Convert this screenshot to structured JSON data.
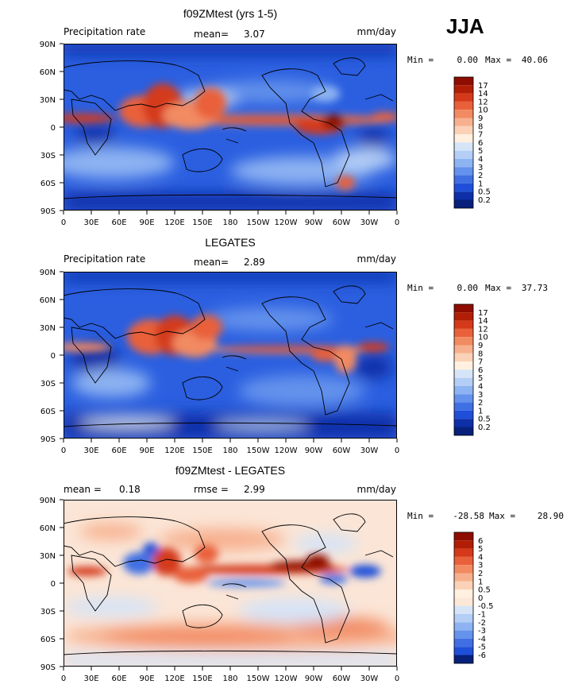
{
  "season": "JJA",
  "colors": {
    "ocean_blue": "#2b5fe0",
    "deep_blue": "#0d2fa8",
    "red": "#d43a1a",
    "dark_red": "#8e0c00",
    "diff_bg": "#fbe5d6",
    "coast": "#000000"
  },
  "chart_data": [
    {
      "type": "heatmap",
      "title": "f09ZMtest (yrs 1-5)",
      "left_label": "Precipitation rate",
      "mean_label": "mean=",
      "mean_value": "3.07",
      "units": "mm/day",
      "min_label": "Min =",
      "min_value": "0.00",
      "max_label": "Max =",
      "max_value": "40.06",
      "x_ticks": [
        "0",
        "30E",
        "60E",
        "90E",
        "120E",
        "150E",
        "180",
        "150W",
        "120W",
        "90W",
        "60W",
        "30W",
        "0"
      ],
      "y_ticks": [
        "90N",
        "60N",
        "30N",
        "0",
        "30S",
        "60S",
        "90S"
      ],
      "xlim": [
        0,
        360
      ],
      "ylim": [
        -90,
        90
      ],
      "colorbar_levels": [
        "17",
        "14",
        "12",
        "10",
        "9",
        "8",
        "7",
        "6",
        "5",
        "4",
        "3",
        "2",
        "1",
        "0.5",
        "0.2"
      ],
      "colorbar_colors": [
        "#8e0c00",
        "#b11e05",
        "#d43a1a",
        "#e9613a",
        "#f28a62",
        "#f7b08e",
        "#fbd2b7",
        "#fff0e0",
        "#d6e4f7",
        "#b4cef5",
        "#8db3f2",
        "#6492ec",
        "#3f6fe3",
        "#1f4fd8",
        "#0d2fa8",
        "#07207a"
      ]
    },
    {
      "type": "heatmap",
      "title": "LEGATES",
      "left_label": "Precipitation rate",
      "mean_label": "mean=",
      "mean_value": "2.89",
      "units": "mm/day",
      "min_label": "Min =",
      "min_value": "0.00",
      "max_label": "Max =",
      "max_value": "37.73",
      "x_ticks": [
        "0",
        "30E",
        "60E",
        "90E",
        "120E",
        "150E",
        "180",
        "150W",
        "120W",
        "90W",
        "60W",
        "30W",
        "0"
      ],
      "y_ticks": [
        "90N",
        "60N",
        "30N",
        "0",
        "30S",
        "60S",
        "90S"
      ],
      "xlim": [
        0,
        360
      ],
      "ylim": [
        -90,
        90
      ],
      "colorbar_levels": [
        "17",
        "14",
        "12",
        "10",
        "9",
        "8",
        "7",
        "6",
        "5",
        "4",
        "3",
        "2",
        "1",
        "0.5",
        "0.2"
      ],
      "colorbar_colors": [
        "#8e0c00",
        "#b11e05",
        "#d43a1a",
        "#e9613a",
        "#f28a62",
        "#f7b08e",
        "#fbd2b7",
        "#fff0e0",
        "#d6e4f7",
        "#b4cef5",
        "#8db3f2",
        "#6492ec",
        "#3f6fe3",
        "#1f4fd8",
        "#0d2fa8",
        "#07207a"
      ]
    },
    {
      "type": "heatmap",
      "title": "f09ZMtest - LEGATES",
      "left_label": "mean =",
      "left_value": "0.18",
      "mean_label": "rmse =",
      "mean_value": "2.99",
      "units": "mm/day",
      "min_label": "Min =",
      "min_value": "-28.58",
      "max_label": "Max =",
      "max_value": "28.90",
      "x_ticks": [
        "0",
        "30E",
        "60E",
        "90E",
        "120E",
        "150E",
        "180",
        "150W",
        "120W",
        "90W",
        "60W",
        "30W",
        "0"
      ],
      "y_ticks": [
        "90N",
        "60N",
        "30N",
        "0",
        "30S",
        "60S",
        "90S"
      ],
      "xlim": [
        0,
        360
      ],
      "ylim": [
        -90,
        90
      ],
      "colorbar_levels": [
        "6",
        "5",
        "4",
        "3",
        "2",
        "1",
        "0.5",
        "0",
        "-0.5",
        "-1",
        "-2",
        "-3",
        "-4",
        "-5",
        "-6"
      ],
      "colorbar_colors": [
        "#8e0c00",
        "#b11e05",
        "#d43a1a",
        "#e9613a",
        "#f28a62",
        "#f7b08e",
        "#fbd2b7",
        "#fff0e0",
        "#fde7d6",
        "#d6e4f7",
        "#b4cef5",
        "#8db3f2",
        "#6492ec",
        "#3f6fe3",
        "#1f4fd8",
        "#07207a"
      ]
    }
  ]
}
